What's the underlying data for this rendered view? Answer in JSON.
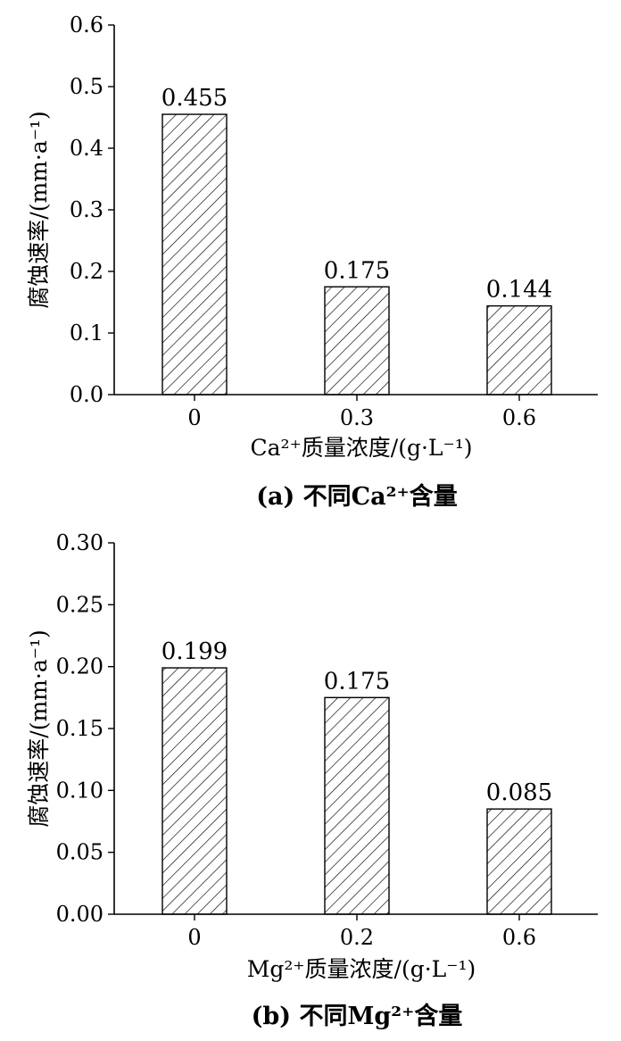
{
  "chart_data": [
    {
      "type": "bar",
      "categories": [
        "0",
        "0.3",
        "0.6"
      ],
      "values": [
        0.455,
        0.175,
        0.144
      ],
      "value_labels": [
        "0.455",
        "0.175",
        "0.144"
      ],
      "ylim": [
        0,
        0.6
      ],
      "yticks": [
        "0.0",
        "0.1",
        "0.2",
        "0.3",
        "0.4",
        "0.5",
        "0.6"
      ],
      "ylabel": "腐蚀速率/(mm·a⁻¹)",
      "xlabel": "Ca²⁺质量浓度/(g·L⁻¹)",
      "caption": "(a) 不同Ca²⁺含量",
      "fill": "hatched"
    },
    {
      "type": "bar",
      "categories": [
        "0",
        "0.2",
        "0.6"
      ],
      "values": [
        0.199,
        0.175,
        0.085
      ],
      "value_labels": [
        "0.199",
        "0.175",
        "0.085"
      ],
      "ylim": [
        0,
        0.3
      ],
      "yticks": [
        "0.00",
        "0.05",
        "0.10",
        "0.15",
        "0.20",
        "0.25",
        "0.30"
      ],
      "ylabel": "腐蚀速率/(mm·a⁻¹)",
      "xlabel": "Mg²⁺质量浓度/(g·L⁻¹)",
      "caption": "(b) 不同Mg²⁺含量",
      "fill": "hatched"
    }
  ]
}
